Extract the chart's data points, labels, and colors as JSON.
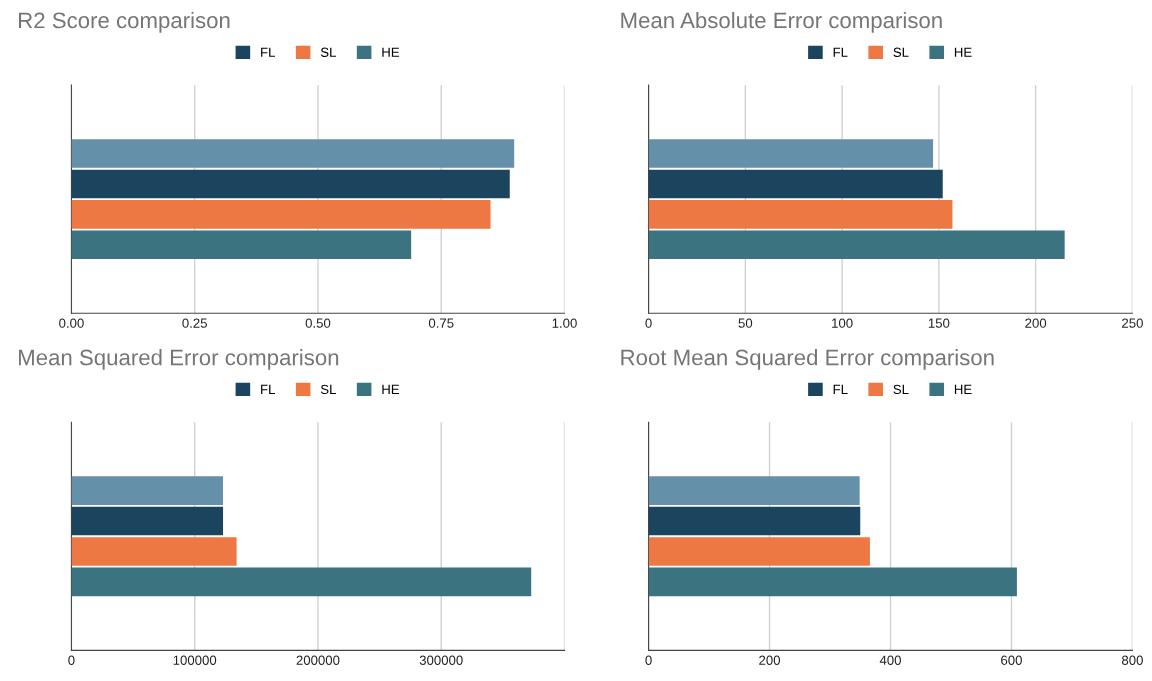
{
  "chart_data": [
    {
      "type": "bar",
      "orientation": "horizontal",
      "title": "R2 Score comparison",
      "categories": [
        null
      ],
      "grid": "x",
      "legend": "top",
      "xlim": [
        0,
        1
      ],
      "xticks": [
        {
          "value": 0,
          "label": "0.00"
        },
        {
          "value": 0.25,
          "label": "0.25"
        },
        {
          "value": 0.5,
          "label": "0.50"
        },
        {
          "value": 0.75,
          "label": "0.75"
        },
        {
          "value": 1,
          "label": "1.00"
        }
      ],
      "series": [
        {
          "color": "#6490aa",
          "values": [
            0.898
          ]
        },
        {
          "name": "FL",
          "color": "#1b445f",
          "values": [
            0.889
          ]
        },
        {
          "name": "SL",
          "color": "#ed7843",
          "values": [
            0.85
          ]
        },
        {
          "name": "HE",
          "color": "#3b7380",
          "values": [
            0.689
          ]
        }
      ]
    },
    {
      "type": "bar",
      "orientation": "horizontal",
      "title": "Mean Absolute Error comparison",
      "categories": [
        null
      ],
      "grid": "x",
      "legend": "top",
      "xlim": [
        0,
        250
      ],
      "xticks": [
        0,
        50,
        100,
        150,
        200,
        250
      ],
      "series": [
        {
          "color": "#6490aa",
          "values": [
            147
          ]
        },
        {
          "name": "FL",
          "color": "#1b445f",
          "values": [
            152
          ]
        },
        {
          "name": "SL",
          "color": "#ed7843",
          "values": [
            157
          ]
        },
        {
          "name": "HE",
          "color": "#3b7380",
          "values": [
            215
          ]
        }
      ]
    },
    {
      "type": "bar",
      "orientation": "horizontal",
      "title": "Mean Squared Error comparison",
      "categories": [
        null
      ],
      "grid": "x",
      "legend": "top",
      "xlim": [
        0,
        400000
      ],
      "xticks": [
        0,
        100000,
        200000,
        300000,
        {
          "value": 400000,
          "label": null
        }
      ],
      "series": [
        {
          "color": "#6490aa",
          "values": [
            123000
          ]
        },
        {
          "name": "FL",
          "color": "#1b445f",
          "values": [
            123000
          ]
        },
        {
          "name": "SL",
          "color": "#ed7843",
          "values": [
            134000
          ]
        },
        {
          "name": "HE",
          "color": "#3b7380",
          "values": [
            373000
          ]
        }
      ]
    },
    {
      "type": "bar",
      "orientation": "horizontal",
      "title": "Root Mean Squared Error comparison",
      "categories": [
        null
      ],
      "grid": "x",
      "legend": "top",
      "xlim": [
        0,
        800
      ],
      "xticks": [
        0,
        200,
        400,
        600,
        800
      ],
      "series": [
        {
          "color": "#6490aa",
          "values": [
            349
          ]
        },
        {
          "name": "FL",
          "color": "#1b445f",
          "values": [
            350
          ]
        },
        {
          "name": "SL",
          "color": "#ed7843",
          "values": [
            366
          ]
        },
        {
          "name": "HE",
          "color": "#3b7380",
          "values": [
            609
          ]
        }
      ]
    }
  ]
}
